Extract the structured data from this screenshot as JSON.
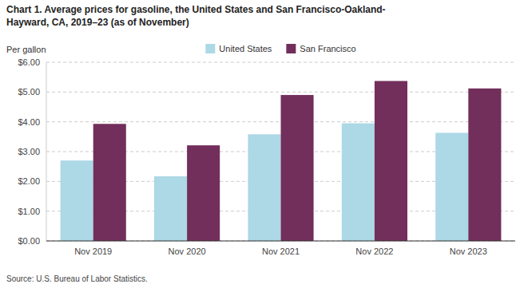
{
  "chart_data": {
    "type": "bar",
    "title": [
      "Chart 1. Average prices for gasoline, the United States and San Francisco-Oakland-",
      "Hayward, CA, 2019–23 (as of November)"
    ],
    "y_label": "Per gallon",
    "source": "Source: U.S. Bureau of Labor Statistics.",
    "categories": [
      "Nov 2019",
      "Nov 2020",
      "Nov 2021",
      "Nov 2022",
      "Nov 2023"
    ],
    "series": [
      {
        "name": "United States",
        "color": "#ADD8E6",
        "values": [
          2.7,
          2.17,
          3.58,
          3.95,
          3.63
        ]
      },
      {
        "name": "San Francisco",
        "color": "#722F5B",
        "values": [
          3.93,
          3.21,
          4.9,
          5.37,
          5.12
        ]
      }
    ],
    "ylim": [
      0,
      6.0
    ],
    "yticks": [
      {
        "value": 0.0,
        "label": "$0.00"
      },
      {
        "value": 1.0,
        "label": "$1.00"
      },
      {
        "value": 2.0,
        "label": "$2.00"
      },
      {
        "value": 3.0,
        "label": "$3.00"
      },
      {
        "value": 4.0,
        "label": "$4.00"
      },
      {
        "value": 5.0,
        "label": "$5.00"
      },
      {
        "value": 6.0,
        "label": "$6.00"
      }
    ],
    "grid": true,
    "legend": "top"
  }
}
